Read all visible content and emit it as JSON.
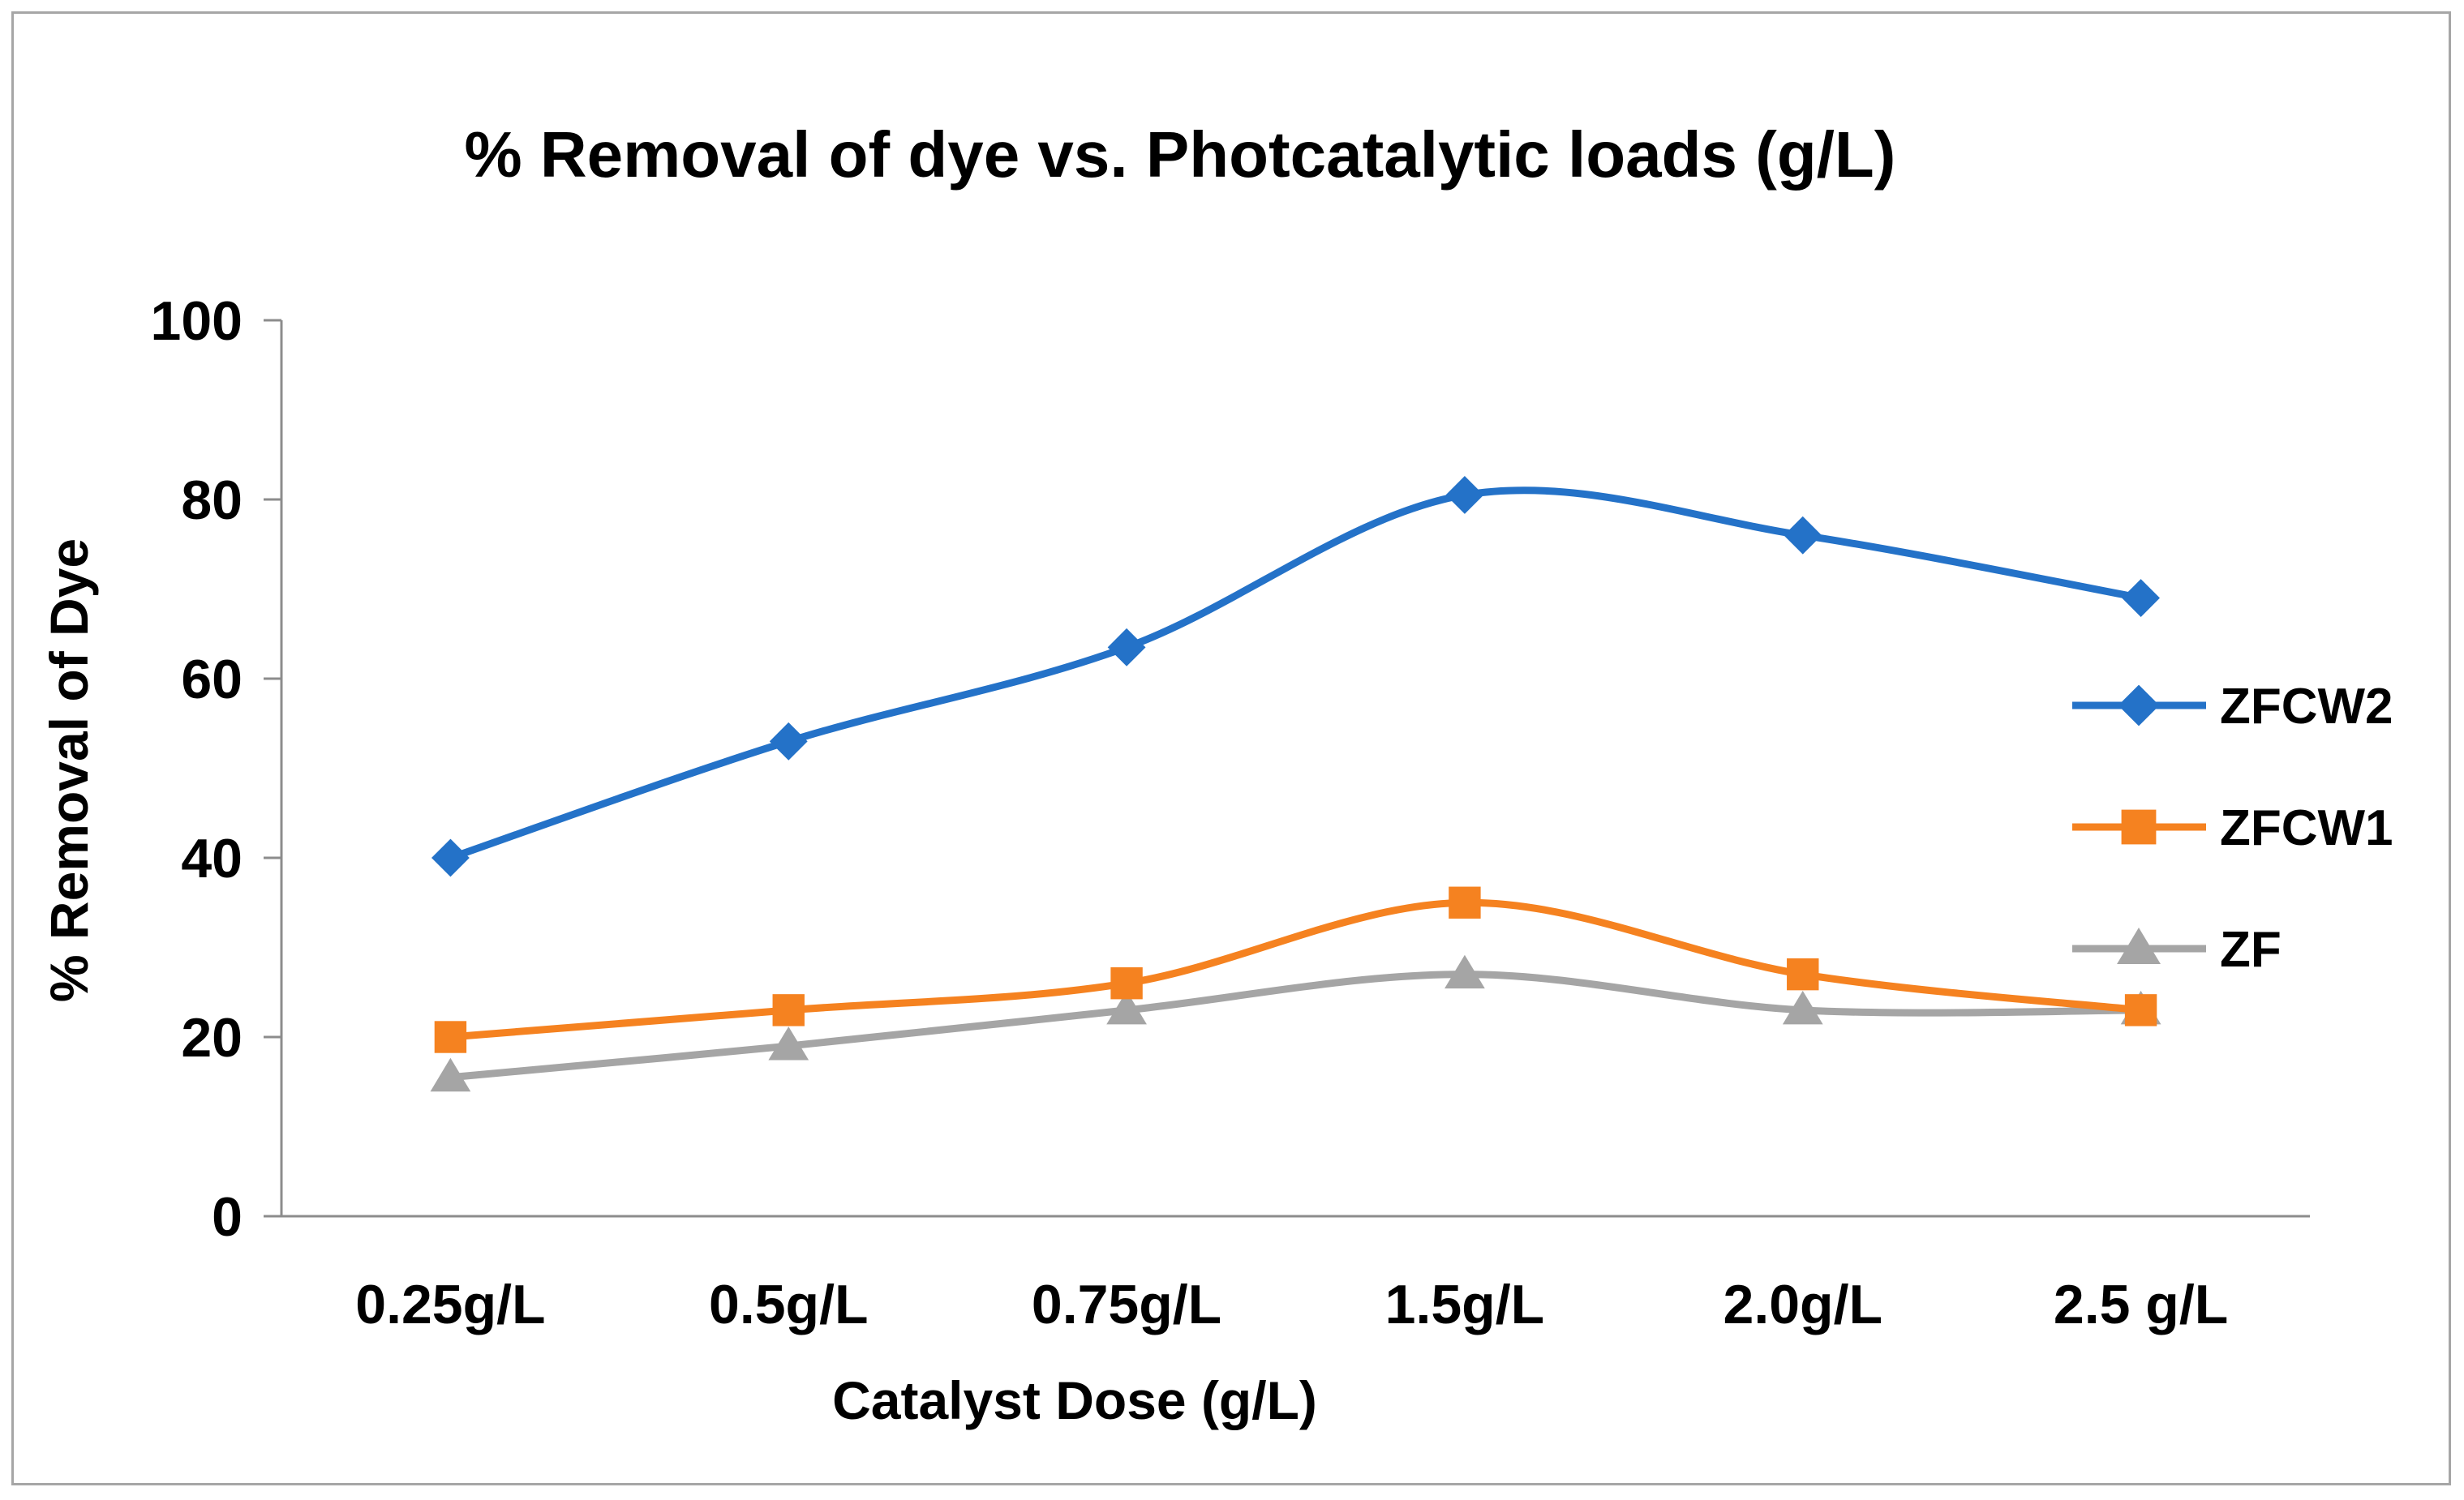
{
  "chart_data": {
    "type": "line",
    "title": "% Removal of dye vs. Photcatalytic loads (g/L)",
    "xlabel": "Catalyst Dose (g/L)",
    "ylabel": "% Removal of Dye",
    "categories": [
      "0.25g/L",
      "0.5g/L",
      "0.75g/L",
      "1.5g/L",
      "2.0g/L",
      "2.5 g/L"
    ],
    "ylim": [
      0,
      100
    ],
    "yticks": [
      "0",
      "20",
      "40",
      "60",
      "80",
      "100"
    ],
    "grid": false,
    "smooth": true,
    "legend_position": "right",
    "series": [
      {
        "name": "ZFCW2",
        "color": "#2472c8",
        "marker": "diamond",
        "values": [
          40,
          53,
          63.5,
          80.5,
          76,
          69
        ]
      },
      {
        "name": "ZFCW1",
        "color": "#f58220",
        "marker": "square",
        "values": [
          20,
          23,
          26,
          35,
          27,
          23
        ]
      },
      {
        "name": "ZF",
        "color": "#a5a5a5",
        "marker": "triangle",
        "values": [
          15.5,
          19,
          23,
          27,
          23,
          23
        ]
      }
    ]
  }
}
